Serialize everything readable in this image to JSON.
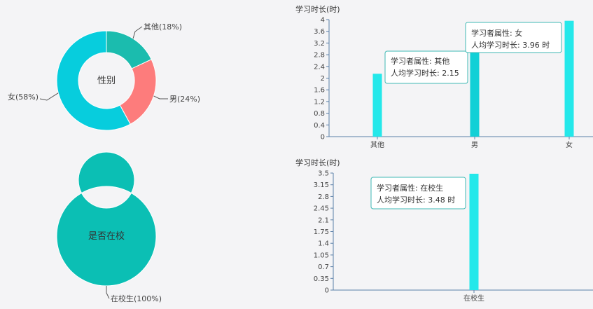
{
  "chart_data": [
    {
      "type": "pie",
      "title": "性别",
      "slices": [
        {
          "label": "其他",
          "percent_label": "其他(18%)",
          "value": 18,
          "color": "#1bbcae"
        },
        {
          "label": "男",
          "percent_label": "男(24%)",
          "value": 24,
          "color": "#fd7c7c"
        },
        {
          "label": "女",
          "percent_label": "女(58%)",
          "value": 58,
          "color": "#07cddd"
        }
      ]
    },
    {
      "type": "pie",
      "title": "是否在校",
      "slices": [
        {
          "label": "在校生",
          "percent_label": "在校生(100%)",
          "value": 100,
          "color": "#0bbfb4"
        }
      ]
    },
    {
      "type": "bar",
      "ylabel": "学习时长(时)",
      "categories": [
        "其他",
        "男",
        "女"
      ],
      "values": [
        2.15,
        3.2,
        3.96
      ],
      "ylim": [
        0,
        4
      ],
      "yticks": [
        "0",
        "0.4",
        "0.8",
        "1.2",
        "1.6",
        "2",
        "2.4",
        "2.8",
        "3.2",
        "3.6",
        "4"
      ],
      "colors": [
        "#24e8ea",
        "#11d0d6",
        "#24e8ea"
      ],
      "tooltips": [
        {
          "line1": "学习者属性: 其他",
          "line2": "人均学习时长: 2.15"
        },
        {
          "line1": "学习者属性: 女",
          "line2": "人均学习时长: 3.96 时"
        }
      ]
    },
    {
      "type": "bar",
      "ylabel": "学习时长(时)",
      "categories": [
        "在校生"
      ],
      "values": [
        3.48
      ],
      "ylim": [
        0,
        3.5
      ],
      "yticks": [
        "0",
        "0.35",
        "0.7",
        "1.05",
        "1.4",
        "1.75",
        "2.1",
        "2.45",
        "2.8",
        "3.15",
        "3.5"
      ],
      "colors": [
        "#24e8ea"
      ],
      "tooltips": [
        {
          "line1": "学习者属性: 在校生",
          "line2": "人均学习时长: 3.48 时"
        }
      ]
    }
  ]
}
